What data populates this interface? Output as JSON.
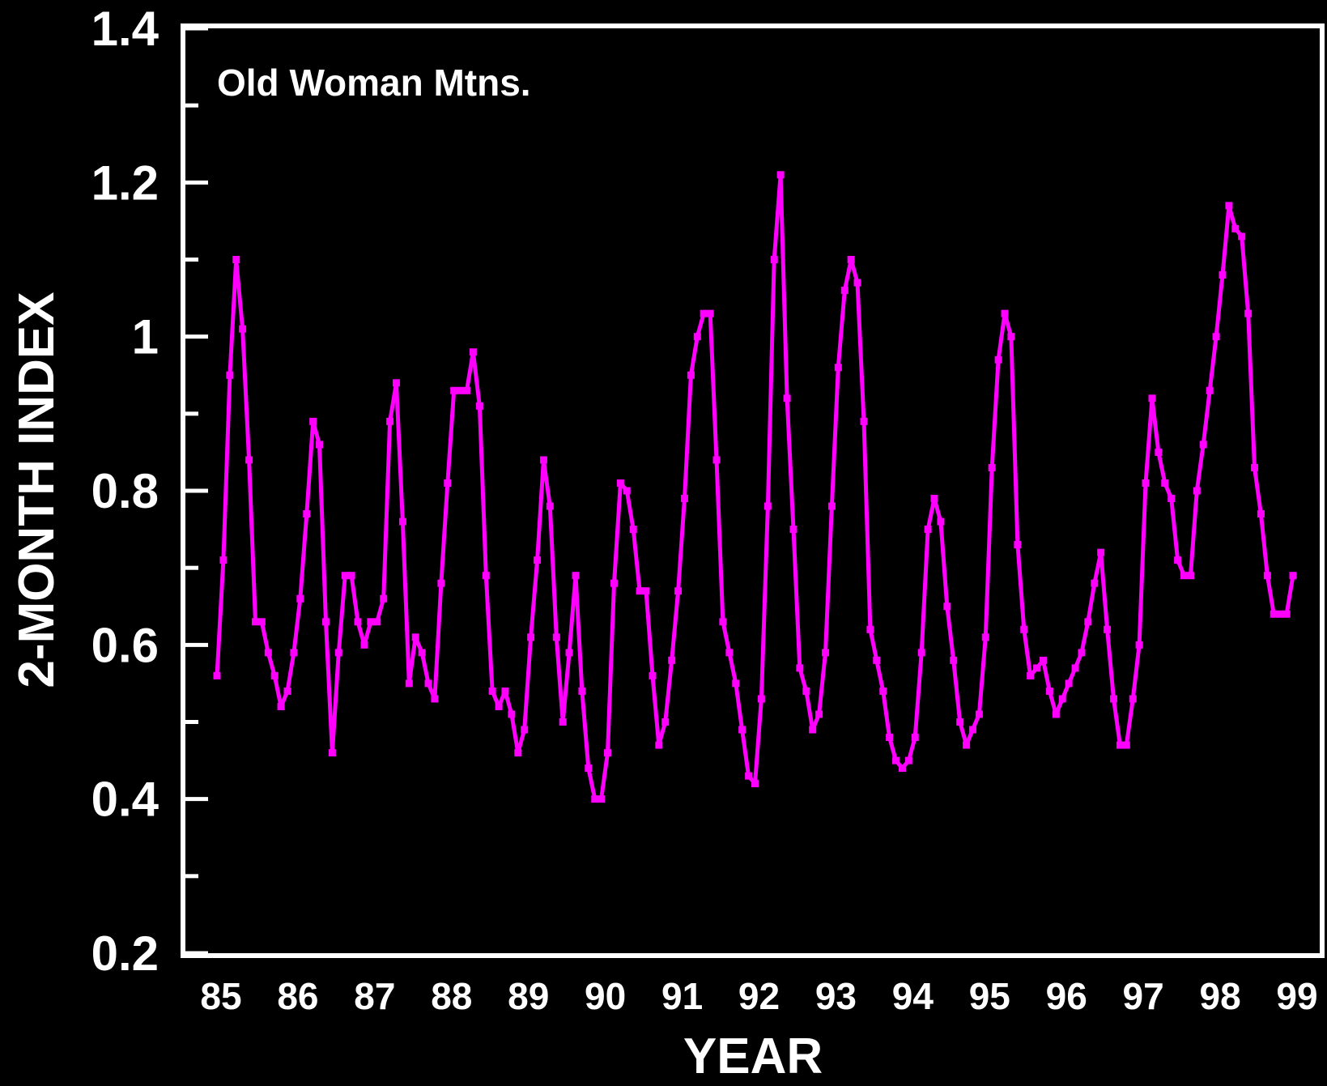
{
  "chart_data": {
    "type": "line",
    "title": "",
    "annotation": "Old Woman Mtns.",
    "xlabel": "YEAR",
    "ylabel": "2-MONTH INDEX",
    "ylim": [
      0.2,
      1.4
    ],
    "y_ticks": [
      "0.2",
      "0.4",
      "0.6",
      "0.8",
      "1",
      "1.2",
      "1.4"
    ],
    "x_ticks": [
      "85",
      "86",
      "87",
      "88",
      "89",
      "90",
      "91",
      "92",
      "93",
      "94",
      "95",
      "96",
      "97",
      "98",
      "99"
    ],
    "grid": false,
    "legend": "none",
    "colors": {
      "background": "#000000",
      "axes": "#ffffff",
      "line": "#ff00ff"
    },
    "series": [
      {
        "x": [
          1985.0,
          1985.083,
          1985.167,
          1985.25,
          1985.333,
          1985.417,
          1985.5,
          1985.583,
          1985.667,
          1985.75,
          1985.833,
          1985.917,
          1986.0,
          1986.083,
          1986.167,
          1986.25,
          1986.333,
          1986.417,
          1986.5,
          1986.583,
          1986.667,
          1986.75,
          1986.833,
          1986.917,
          1987.0,
          1987.083,
          1987.167,
          1987.25,
          1987.333,
          1987.417,
          1987.5,
          1987.583,
          1987.667,
          1987.75,
          1987.833,
          1987.917,
          1988.0,
          1988.083,
          1988.167,
          1988.25,
          1988.333,
          1988.417,
          1988.5,
          1988.583,
          1988.667,
          1988.75,
          1988.833,
          1988.917,
          1989.0,
          1989.083,
          1989.167,
          1989.25,
          1989.333,
          1989.417,
          1989.5,
          1989.583,
          1989.667,
          1989.75,
          1989.833,
          1989.917,
          1990.0,
          1990.083,
          1990.167,
          1990.25,
          1990.333,
          1990.417,
          1990.5,
          1990.583,
          1990.667,
          1990.75,
          1990.833,
          1990.917,
          1991.0,
          1991.083,
          1991.167,
          1991.25,
          1991.333,
          1991.417,
          1991.5,
          1991.583,
          1991.667,
          1991.75,
          1991.833,
          1991.917,
          1992.0,
          1992.083,
          1992.167,
          1992.25,
          1992.333,
          1992.417,
          1992.5,
          1992.583,
          1992.667,
          1992.75,
          1992.833,
          1992.917,
          1993.0,
          1993.083,
          1993.167,
          1993.25,
          1993.333,
          1993.417,
          1993.5,
          1993.583,
          1993.667,
          1993.75,
          1993.833,
          1993.917,
          1994.0,
          1994.083,
          1994.167,
          1994.25,
          1994.333,
          1994.417,
          1994.5,
          1994.583,
          1994.667,
          1994.75,
          1994.833,
          1994.917,
          1995.0,
          1995.083,
          1995.167,
          1995.25,
          1995.333,
          1995.417,
          1995.5,
          1995.583,
          1995.667,
          1995.75,
          1995.833,
          1995.917,
          1996.0,
          1996.083,
          1996.167,
          1996.25,
          1996.333,
          1996.417,
          1996.5,
          1996.583,
          1996.667,
          1996.75,
          1996.833,
          1996.917,
          1997.0,
          1997.083,
          1997.167,
          1997.25,
          1997.333,
          1997.417,
          1997.5,
          1997.583,
          1997.667,
          1997.75,
          1997.833,
          1997.917,
          1998.0,
          1998.083,
          1998.167,
          1998.25,
          1998.333,
          1998.417,
          1998.5,
          1998.583,
          1998.667,
          1998.75,
          1998.833,
          1998.917,
          1999.0
        ],
        "values": [
          0.56,
          0.71,
          0.95,
          1.1,
          1.01,
          0.84,
          0.63,
          0.63,
          0.59,
          0.56,
          0.52,
          0.54,
          0.59,
          0.66,
          0.77,
          0.89,
          0.86,
          0.63,
          0.46,
          0.59,
          0.69,
          0.69,
          0.63,
          0.6,
          0.63,
          0.63,
          0.66,
          0.89,
          0.94,
          0.76,
          0.55,
          0.61,
          0.59,
          0.55,
          0.53,
          0.68,
          0.81,
          0.93,
          0.93,
          0.93,
          0.98,
          0.91,
          0.69,
          0.54,
          0.52,
          0.54,
          0.51,
          0.46,
          0.49,
          0.61,
          0.71,
          0.84,
          0.78,
          0.61,
          0.5,
          0.59,
          0.69,
          0.54,
          0.44,
          0.4,
          0.4,
          0.46,
          0.68,
          0.81,
          0.8,
          0.75,
          0.67,
          0.67,
          0.56,
          0.47,
          0.5,
          0.58,
          0.67,
          0.79,
          0.95,
          1.0,
          1.03,
          1.03,
          0.84,
          0.63,
          0.59,
          0.55,
          0.49,
          0.43,
          0.42,
          0.53,
          0.78,
          1.1,
          1.21,
          0.92,
          0.75,
          0.57,
          0.54,
          0.49,
          0.51,
          0.59,
          0.78,
          0.96,
          1.06,
          1.1,
          1.07,
          0.89,
          0.62,
          0.58,
          0.54,
          0.48,
          0.45,
          0.44,
          0.45,
          0.48,
          0.59,
          0.75,
          0.79,
          0.76,
          0.65,
          0.58,
          0.5,
          0.47,
          0.49,
          0.51,
          0.61,
          0.83,
          0.97,
          1.03,
          1.0,
          0.73,
          0.62,
          0.56,
          0.57,
          0.58,
          0.54,
          0.51,
          0.53,
          0.55,
          0.57,
          0.59,
          0.63,
          0.68,
          0.72,
          0.62,
          0.53,
          0.47,
          0.47,
          0.53,
          0.6,
          0.81,
          0.92,
          0.85,
          0.81,
          0.79,
          0.71,
          0.69,
          0.69,
          0.8,
          0.86,
          0.93,
          1.0,
          1.08,
          1.17,
          1.14,
          1.13,
          1.03,
          0.83,
          0.77,
          0.69,
          0.64,
          0.64,
          0.64,
          0.69
        ]
      }
    ]
  }
}
